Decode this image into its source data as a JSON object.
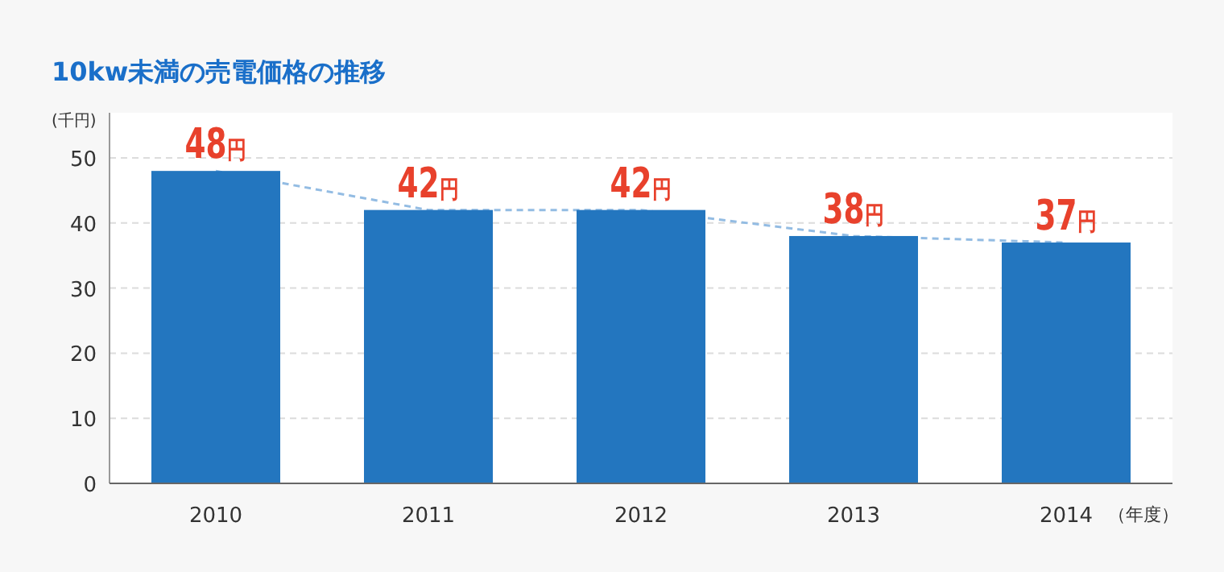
{
  "chart_data": {
    "type": "bar",
    "title": "10kw未満の売電価格の推移",
    "ylabel": "(千円)",
    "xlabel": "（年度）",
    "categories": [
      "2010",
      "2011",
      "2012",
      "2013",
      "2014"
    ],
    "series": [
      {
        "color": "#2376bf",
        "values": [
          48,
          42,
          42,
          38,
          37
        ],
        "value_labels": [
          "48円",
          "42円",
          "42円",
          "38円",
          "37円"
        ]
      },
      {
        "type": "line",
        "line_style": "dashed",
        "color": "#93bce3",
        "values": [
          48,
          42,
          42,
          38,
          37
        ]
      }
    ],
    "ylim": [
      0,
      50
    ],
    "yticks": [
      0,
      10,
      20,
      30,
      40,
      50
    ],
    "grid": "y"
  }
}
